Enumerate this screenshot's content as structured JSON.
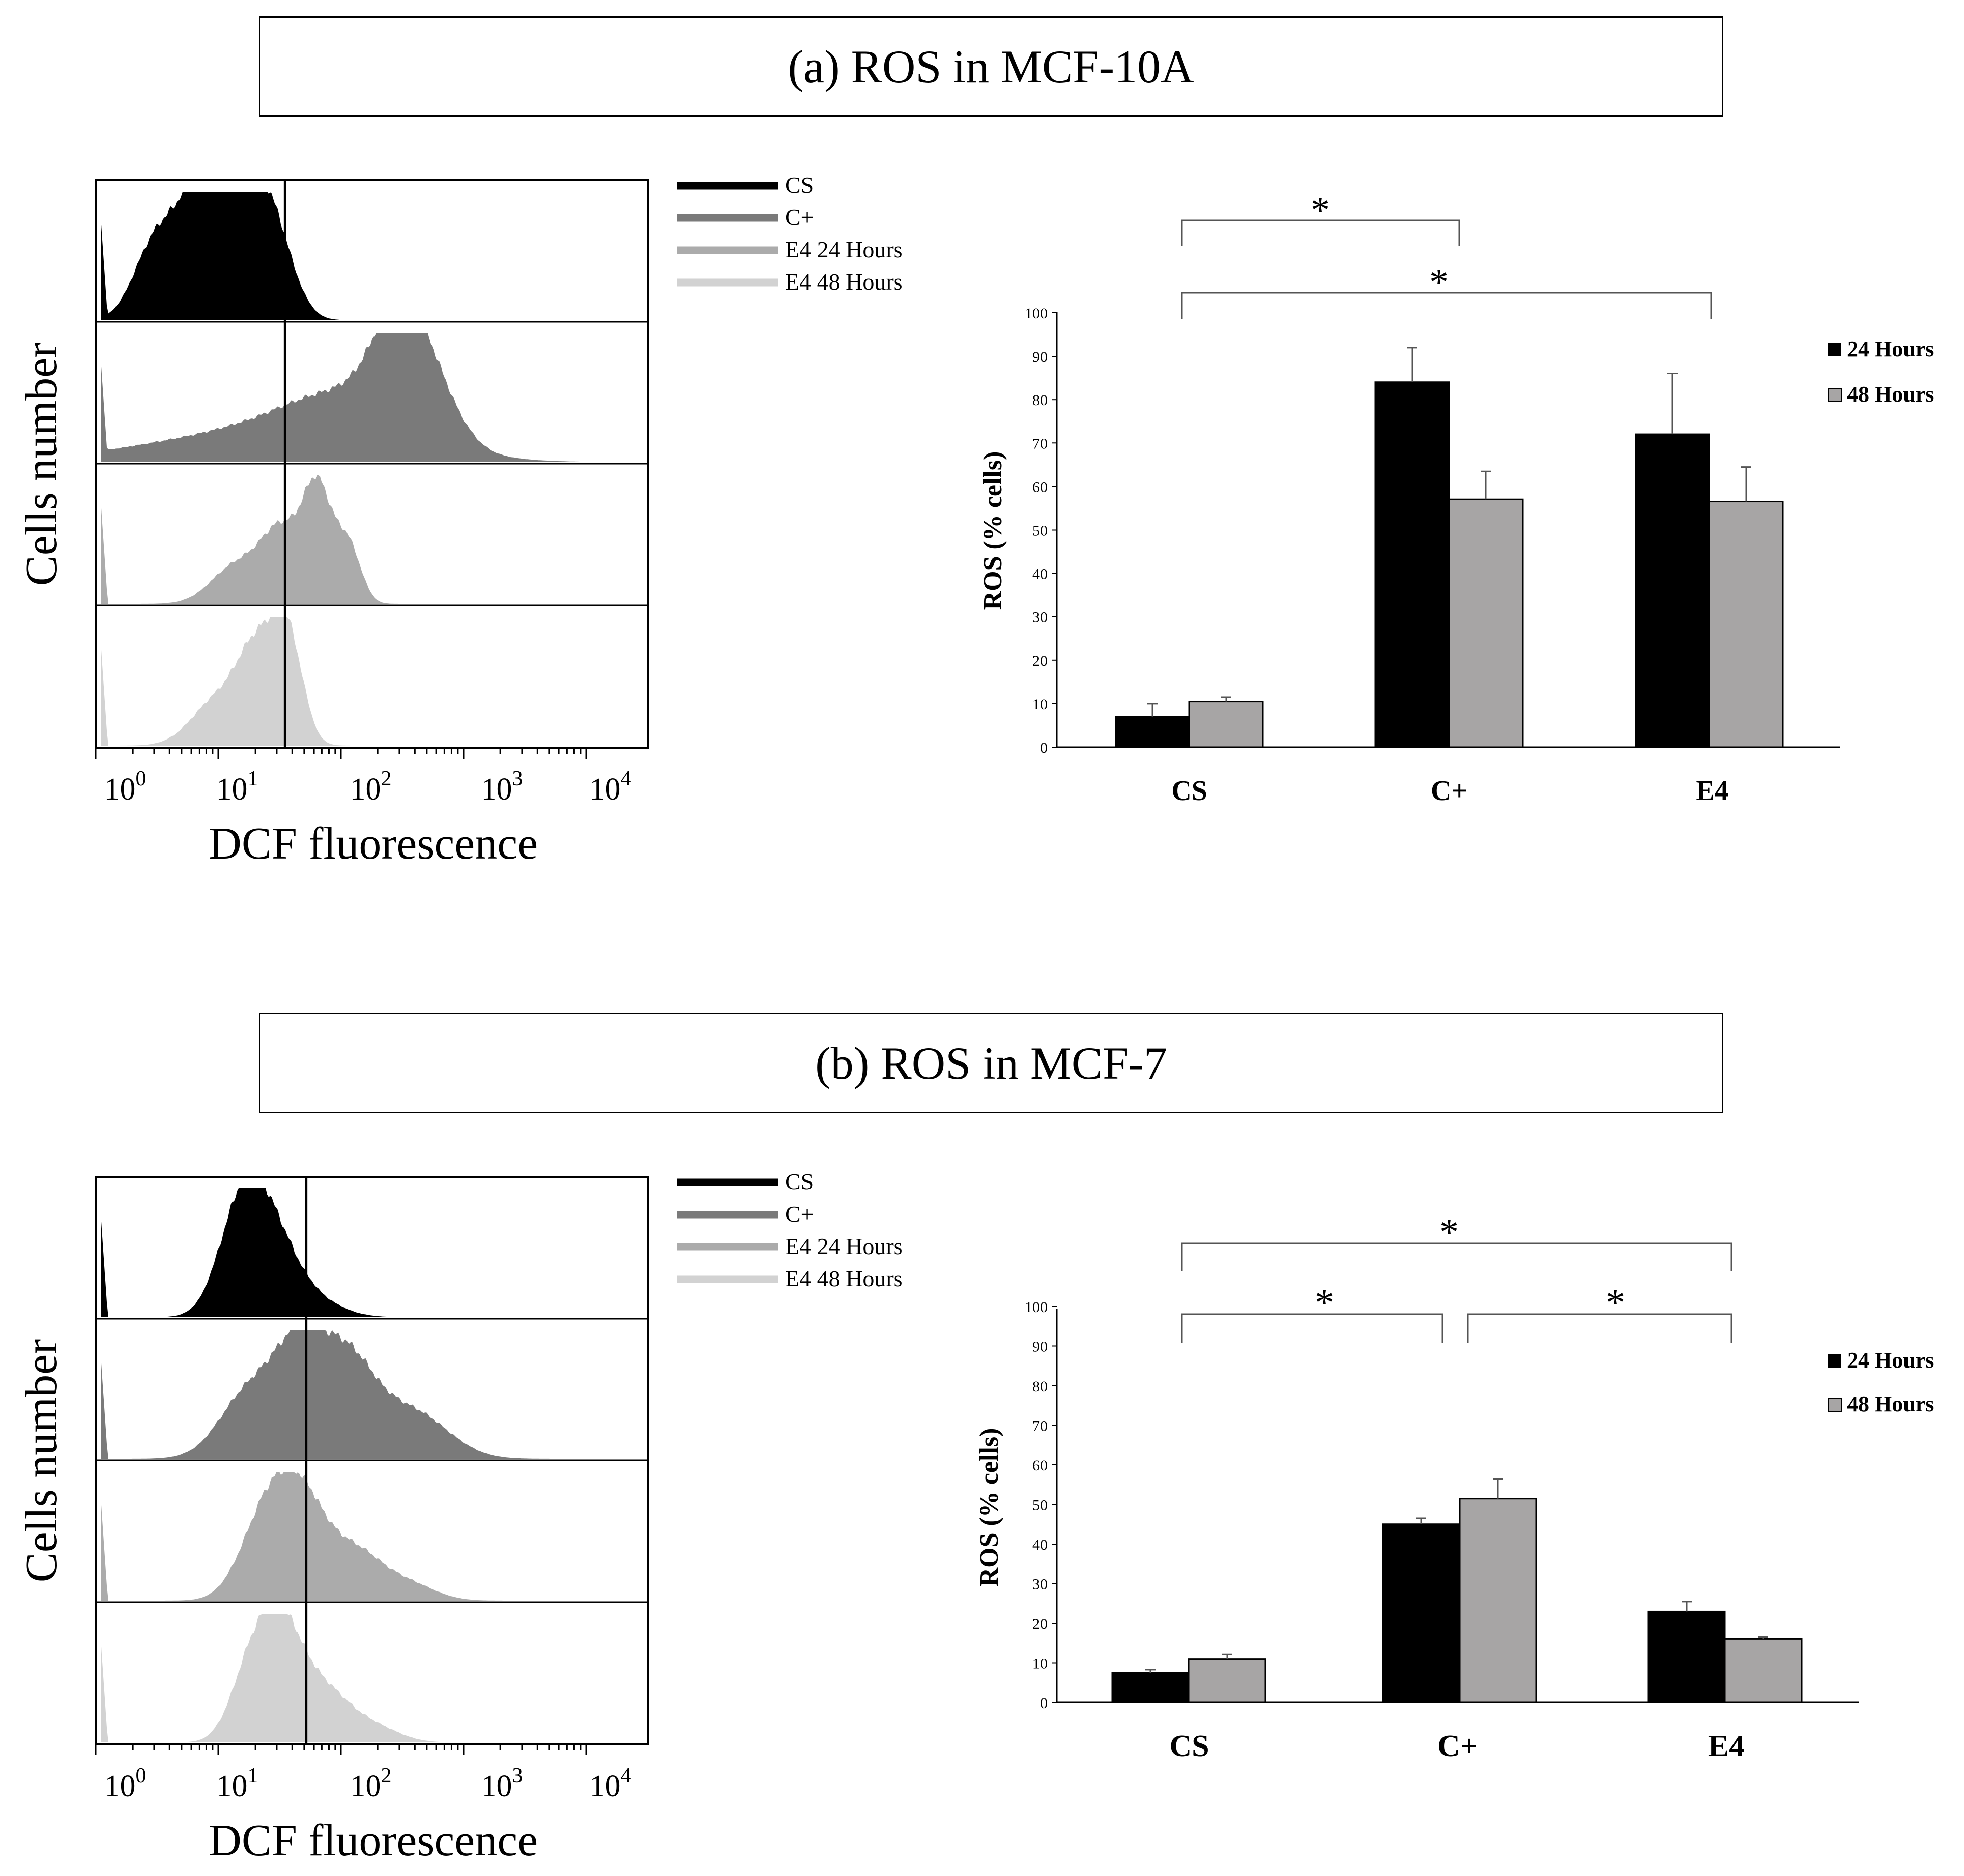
{
  "colors": {
    "black": "#000000",
    "c_plus": "#7a7a7a",
    "e4_24h": "#ababab",
    "e4_48h": "#d2d2d2",
    "bar_48h": "#a7a5a5"
  },
  "panels": [
    {
      "title": "(a) ROS in MCF-10A",
      "histogram": {
        "ylabel": "Cells number",
        "xlabel": "DCF fluorescence",
        "xticks": [
          {
            "base": "10",
            "exp": "0"
          },
          {
            "base": "10",
            "exp": "1"
          },
          {
            "base": "10",
            "exp": "2"
          },
          {
            "base": "10",
            "exp": "3"
          },
          {
            "base": "10",
            "exp": "4"
          }
        ],
        "legend": [
          "CS",
          "C+",
          "E4 24 Hours",
          "E4 48 Hours"
        ],
        "gate_log10": 1.45
      },
      "chart_data": {
        "type": "bar",
        "categories": [
          "CS",
          "C+",
          "E4"
        ],
        "series": [
          {
            "name": "24 Hours",
            "values": [
              7,
              84,
              72
            ],
            "errors": [
              3,
              8,
              14
            ]
          },
          {
            "name": "48 Hours",
            "values": [
              10.5,
              57,
              56.5
            ],
            "errors": [
              1,
              6.5,
              8
            ]
          }
        ],
        "ylabel": "ROS (% cells)",
        "ylim": [
          0,
          100
        ],
        "yticks": [
          "0",
          "10",
          "20",
          "30",
          "40",
          "50",
          "60",
          "70",
          "80",
          "90",
          "100"
        ],
        "legend_labels": [
          "24 Hours",
          "48 Hours"
        ],
        "significance": [
          {
            "from": "CS",
            "to": "C+",
            "label": "*"
          },
          {
            "from": "CS",
            "to": "E4",
            "label": "*"
          }
        ]
      }
    },
    {
      "title": "(b) ROS in MCF-7",
      "histogram": {
        "ylabel": "Cells number",
        "xlabel": "DCF fluorescence",
        "xticks": [
          {
            "base": "10",
            "exp": "0"
          },
          {
            "base": "10",
            "exp": "1"
          },
          {
            "base": "10",
            "exp": "2"
          },
          {
            "base": "10",
            "exp": "3"
          },
          {
            "base": "10",
            "exp": "4"
          }
        ],
        "legend": [
          "CS",
          "C+",
          "E4 24 Hours",
          "E4 48 Hours"
        ],
        "gate_log10": 1.62
      },
      "chart_data": {
        "type": "bar",
        "categories": [
          "CS",
          "C+",
          "E4"
        ],
        "series": [
          {
            "name": "24 Hours",
            "values": [
              7.5,
              45,
              23
            ],
            "errors": [
              0.8,
              1.5,
              2.5
            ]
          },
          {
            "name": "48 Hours",
            "values": [
              11,
              51.5,
              16
            ],
            "errors": [
              1.2,
              5,
              0.5
            ]
          }
        ],
        "ylabel": "ROS (% cells)",
        "ylim": [
          0,
          100
        ],
        "yticks": [
          "0",
          "10",
          "20",
          "30",
          "40",
          "50",
          "60",
          "70",
          "80",
          "90",
          "100"
        ],
        "legend_labels": [
          "24 Hours",
          "48 Hours"
        ],
        "significance": [
          {
            "from": "CS",
            "to": "E4",
            "label": "*"
          },
          {
            "from": "CS",
            "to": "C+",
            "label": "*"
          },
          {
            "from": "C+",
            "to": "E4",
            "label": "*"
          }
        ]
      }
    }
  ]
}
